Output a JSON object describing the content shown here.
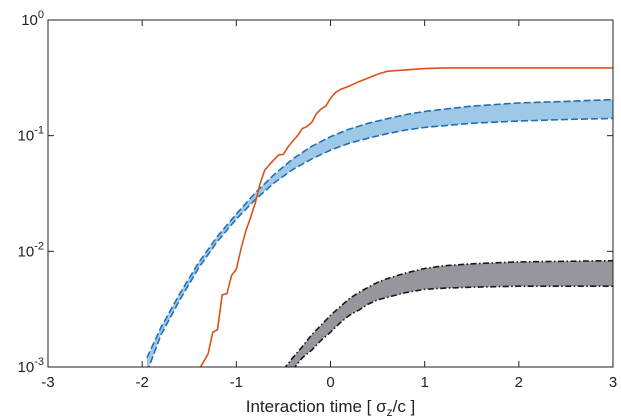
{
  "chart_data": {
    "type": "area",
    "xlabel_parts": {
      "before": "Interaction time [ σ",
      "sub": "z",
      "after": "/c ]"
    },
    "xlim": [
      -3,
      3
    ],
    "ylim": [
      0.001,
      1
    ],
    "yscale": "log",
    "x_ticks": [
      "-3",
      "-2",
      "-1",
      "0",
      "1",
      "2",
      "3"
    ],
    "y_ticks": [
      {
        "base": "10",
        "exp": "0"
      },
      {
        "base": "10",
        "exp": "-1"
      },
      {
        "base": "10",
        "exp": "-2"
      },
      {
        "base": "10",
        "exp": "-3"
      }
    ],
    "grid": false,
    "bands": [
      {
        "fill": "#9ec8e8",
        "edge_color": "#1f6fb5",
        "edge_style": "dashed",
        "x": [
          -1.95,
          -1.8,
          -1.6,
          -1.4,
          -1.2,
          -1.0,
          -0.8,
          -0.6,
          -0.4,
          -0.2,
          0.0,
          0.2,
          0.4,
          0.6,
          0.8,
          1.0,
          1.5,
          2.0,
          2.5,
          3.0
        ],
        "upper": [
          0.0012,
          0.0022,
          0.0043,
          0.008,
          0.0135,
          0.021,
          0.032,
          0.046,
          0.063,
          0.081,
          0.098,
          0.114,
          0.128,
          0.14,
          0.152,
          0.162,
          0.18,
          0.192,
          0.198,
          0.205
        ],
        "lower": [
          0.0009,
          0.0019,
          0.0038,
          0.0072,
          0.0122,
          0.019,
          0.028,
          0.039,
          0.051,
          0.063,
          0.075,
          0.086,
          0.095,
          0.104,
          0.112,
          0.118,
          0.128,
          0.134,
          0.138,
          0.141
        ]
      },
      {
        "fill": "#96969c",
        "edge_color": "#1a1a1a",
        "edge_style": "dash-dot",
        "x": [
          -0.5,
          -0.4,
          -0.3,
          -0.2,
          -0.1,
          0.0,
          0.1,
          0.2,
          0.3,
          0.4,
          0.5,
          0.6,
          0.8,
          1.0,
          1.2,
          1.5,
          2.0,
          2.5,
          3.0
        ],
        "upper": [
          0.00095,
          0.0012,
          0.0015,
          0.0019,
          0.0023,
          0.0028,
          0.0033,
          0.0039,
          0.0044,
          0.0049,
          0.0054,
          0.0058,
          0.0065,
          0.0071,
          0.0075,
          0.0078,
          0.0081,
          0.0082,
          0.0083
        ],
        "lower": [
          0.0008,
          0.00095,
          0.0012,
          0.0014,
          0.0017,
          0.002,
          0.0024,
          0.0028,
          0.0031,
          0.0035,
          0.0038,
          0.004,
          0.0044,
          0.0047,
          0.0048,
          0.0049,
          0.005,
          0.005,
          0.005
        ]
      }
    ],
    "lines": [
      {
        "color": "#d95319",
        "x": [
          -1.45,
          -1.35,
          -1.3,
          -1.25,
          -1.2,
          -1.15,
          -1.1,
          -1.05,
          -1.0,
          -0.95,
          -0.9,
          -0.85,
          -0.8,
          -0.75,
          -0.7,
          -0.65,
          -0.6,
          -0.55,
          -0.5,
          -0.45,
          -0.4,
          -0.35,
          -0.3,
          -0.25,
          -0.2,
          -0.15,
          -0.1,
          -0.05,
          0.0,
          0.05,
          0.1,
          0.2,
          0.3,
          0.4,
          0.5,
          0.6,
          0.7,
          0.8,
          1.0,
          1.2,
          1.5,
          2.0,
          3.0
        ],
        "y": [
          0.0008,
          0.0011,
          0.0013,
          0.002,
          0.0021,
          0.0042,
          0.0043,
          0.0062,
          0.007,
          0.0105,
          0.015,
          0.0195,
          0.026,
          0.038,
          0.05,
          0.056,
          0.062,
          0.068,
          0.069,
          0.08,
          0.09,
          0.1,
          0.115,
          0.12,
          0.13,
          0.155,
          0.17,
          0.18,
          0.21,
          0.235,
          0.25,
          0.268,
          0.293,
          0.315,
          0.34,
          0.36,
          0.365,
          0.37,
          0.38,
          0.385,
          0.385,
          0.385,
          0.385
        ]
      }
    ]
  }
}
